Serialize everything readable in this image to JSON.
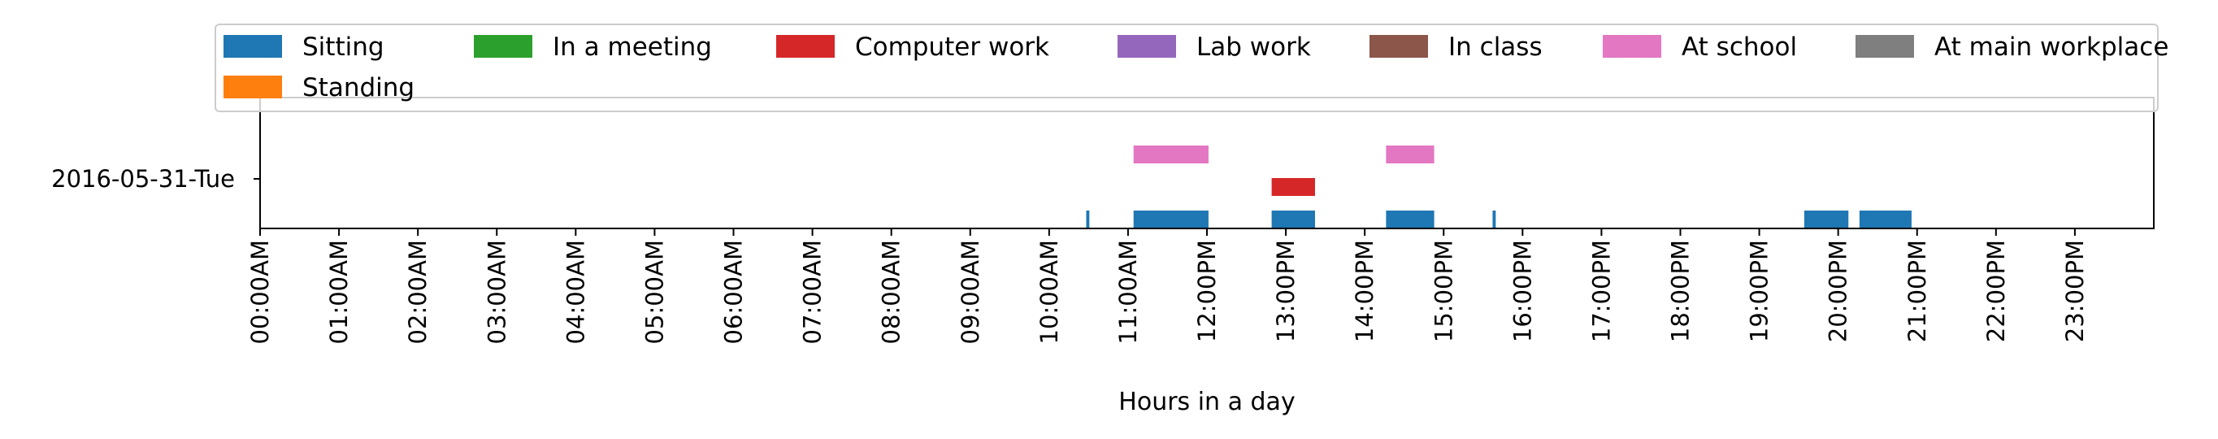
{
  "chart_data": {
    "type": "timeline",
    "xlabel": "Hours in a day",
    "ylabel": "",
    "xlim": [
      0,
      24
    ],
    "x_ticks": [
      "00:00AM",
      "01:00AM",
      "02:00AM",
      "03:00AM",
      "04:00AM",
      "05:00AM",
      "06:00AM",
      "07:00AM",
      "08:00AM",
      "09:00AM",
      "10:00AM",
      "11:00AM",
      "12:00PM",
      "13:00PM",
      "14:00PM",
      "15:00PM",
      "16:00PM",
      "17:00PM",
      "18:00PM",
      "19:00PM",
      "20:00PM",
      "21:00PM",
      "22:00PM",
      "23:00PM"
    ],
    "y_categories": [
      "2016-05-31-Tue"
    ],
    "legend_placement": "top",
    "grid": false,
    "series": [
      {
        "name": "Sitting",
        "color": "#1f77b4",
        "lane": 0,
        "intervals": [
          [
            10.47,
            10.51
          ],
          [
            11.07,
            12.02
          ],
          [
            12.82,
            13.37
          ],
          [
            14.27,
            14.88
          ],
          [
            15.62,
            15.66
          ],
          [
            19.57,
            20.13
          ],
          [
            20.27,
            20.93
          ]
        ]
      },
      {
        "name": "Standing",
        "color": "#ff7f0e",
        "lane": 1,
        "intervals": []
      },
      {
        "name": "In a meeting",
        "color": "#2ca02c",
        "lane": 2,
        "intervals": []
      },
      {
        "name": "Computer work",
        "color": "#d62728",
        "lane": 3,
        "intervals": [
          [
            12.82,
            13.37
          ]
        ]
      },
      {
        "name": "Lab work",
        "color": "#9467bd",
        "lane": 4,
        "intervals": []
      },
      {
        "name": "In class",
        "color": "#8c564b",
        "lane": 5,
        "intervals": []
      },
      {
        "name": "At school",
        "color": "#e377c2",
        "lane": 6,
        "intervals": [
          [
            11.07,
            12.02
          ],
          [
            14.27,
            14.88
          ]
        ]
      },
      {
        "name": "At main workplace",
        "color": "#7f7f7f",
        "lane": 7,
        "intervals": []
      }
    ]
  }
}
